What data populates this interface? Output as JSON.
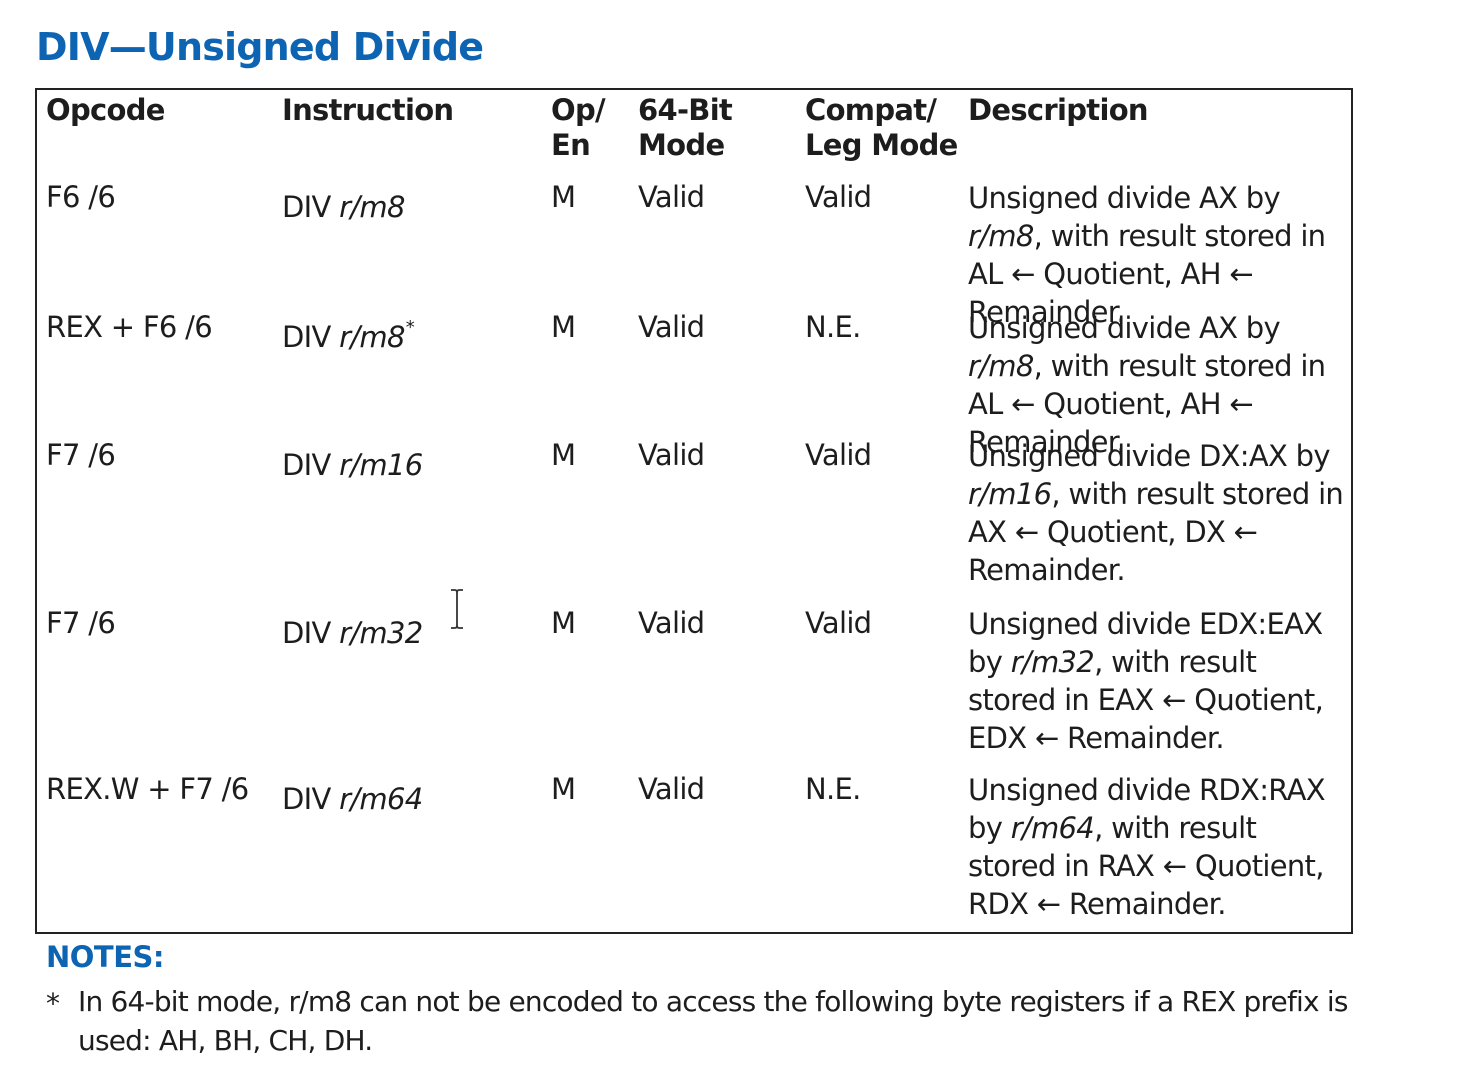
{
  "title": "DIV—Unsigned Divide",
  "table": {
    "headers": {
      "opcode": "Opcode",
      "instruction": "Instruction",
      "open_line1": "Op/",
      "open_line2": "En",
      "mode64_line1": "64-Bit",
      "mode64_line2": "Mode",
      "compat_line1": "Compat/",
      "compat_line2": "Leg Mode",
      "description": "Description"
    },
    "rows": [
      {
        "opcode": "F6 /6",
        "instr_prefix": "DIV ",
        "instr_operand": "r/m8",
        "instr_mark": "",
        "op_en": "M",
        "mode64": "Valid",
        "compat": "Valid",
        "desc_a": "Unsigned divide AX by ",
        "desc_op": "r/m8",
        "desc_b": ", with result stored in AL ← Quotient, AH ← Remainder."
      },
      {
        "opcode": "REX + F6 /6",
        "instr_prefix": "DIV ",
        "instr_operand": "r/m8",
        "instr_mark": "*",
        "op_en": "M",
        "mode64": "Valid",
        "compat": "N.E.",
        "desc_a": "Unsigned divide AX by ",
        "desc_op": "r/m8",
        "desc_b": ", with result stored in AL ← Quotient, AH ← Remainder."
      },
      {
        "opcode": "F7 /6",
        "instr_prefix": "DIV ",
        "instr_operand": "r/m16",
        "instr_mark": "",
        "op_en": "M",
        "mode64": "Valid",
        "compat": "Valid",
        "desc_a": "Unsigned divide DX:AX by ",
        "desc_op": "r/m16",
        "desc_b": ", with result stored in AX ← Quotient, DX ← Remainder."
      },
      {
        "opcode": "F7 /6",
        "instr_prefix": "DIV ",
        "instr_operand": "r/m32",
        "instr_mark": "",
        "op_en": "M",
        "mode64": "Valid",
        "compat": "Valid",
        "desc_a": "Unsigned divide EDX:EAX by ",
        "desc_op": "r/m32",
        "desc_b": ", with result stored in EAX ← Quotient, EDX ← Remainder."
      },
      {
        "opcode": "REX.W + F7 /6",
        "instr_prefix": "DIV ",
        "instr_operand": "r/m64",
        "instr_mark": "",
        "op_en": "M",
        "mode64": "Valid",
        "compat": "N.E.",
        "desc_a": "Unsigned divide RDX:RAX by ",
        "desc_op": "r/m64",
        "desc_b": ", with result stored in RAX ← Quotient, RDX ← Remainder."
      }
    ]
  },
  "notes": {
    "title": "NOTES:",
    "marker": "*",
    "text": "In 64-bit mode, r/m8 can not be encoded to access the following byte registers if a REX prefix is used: AH, BH, CH, DH."
  },
  "cursor_icon": "text-cursor-icon"
}
